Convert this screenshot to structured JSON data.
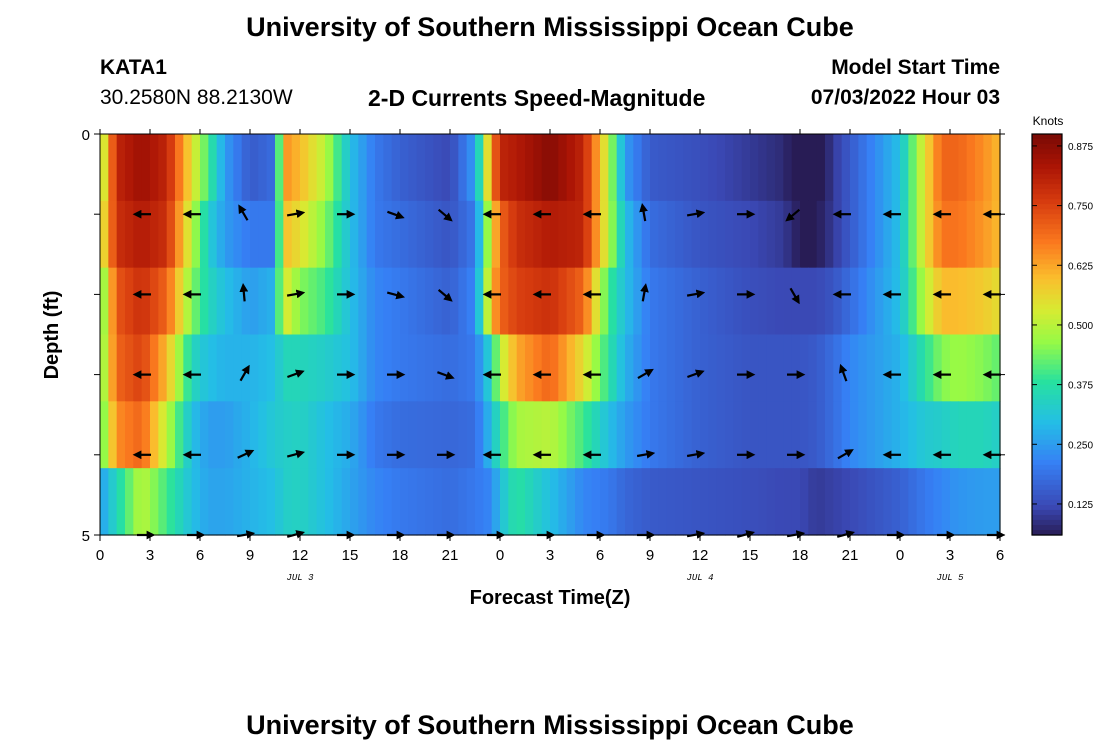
{
  "header": {
    "title": "University of Southern Mississippi Ocean Cube",
    "station": "KATA1",
    "coords": "30.2580N  88.2130W",
    "chart_title": "2-D Currents Speed-Magnitude",
    "model_label": "Model Start Time",
    "model_time": "07/03/2022 Hour 03"
  },
  "footer": {
    "title": "University of Southern Mississippi Ocean Cube"
  },
  "colors": {
    "axis": "#000000",
    "arrow": "#000000"
  },
  "chart_data": {
    "type": "heatmap",
    "title": "2-D Currents Speed-Magnitude",
    "xlabel": "Forecast Time(Z)",
    "ylabel": "Depth (ft)",
    "x_ticks": [
      "0",
      "3",
      "6",
      "9",
      "12",
      "15",
      "18",
      "21",
      "0",
      "3",
      "6",
      "9",
      "12",
      "15",
      "18",
      "21",
      "0",
      "3",
      "6"
    ],
    "date_labels": [
      {
        "label": "JUL 3",
        "x_hour": 12
      },
      {
        "label": "JUL 4",
        "x_hour": 36
      },
      {
        "label": "JUL 5",
        "x_hour": 51
      }
    ],
    "y_tick_labels": [
      {
        "depth": 0,
        "label": "0"
      },
      {
        "depth": 5,
        "label": "5"
      }
    ],
    "y_ticks_depths": [
      0,
      1,
      2,
      3,
      4,
      5
    ],
    "xlim_hours": [
      0,
      54
    ],
    "ylim_ft": [
      0,
      5
    ],
    "depth_layers": [
      0,
      1,
      2,
      3,
      4,
      5
    ],
    "colorbar": {
      "title": "Knots",
      "ticks": [
        "0.875",
        "0.750",
        "0.625",
        "0.500",
        "0.375",
        "0.250",
        "0.125"
      ],
      "tick_values": [
        0.875,
        0.75,
        0.625,
        0.5,
        0.375,
        0.25,
        0.125
      ],
      "min": 0.06,
      "max": 0.9
    },
    "speed_keyframes": {
      "hours": [
        0,
        1,
        2.5,
        4,
        5.5,
        6.5,
        7.5,
        9,
        10.5,
        11,
        12,
        13.5,
        15,
        16.5,
        18,
        21,
        22.5,
        23.5,
        24,
        25,
        27,
        29,
        30.5,
        31.5,
        33,
        36,
        39,
        41,
        42,
        43,
        44,
        45,
        48,
        49.5,
        50.5,
        51.5,
        53,
        54
      ],
      "layers": [
        [
          0.45,
          0.8,
          0.85,
          0.8,
          0.55,
          0.4,
          0.25,
          0.15,
          0.18,
          0.65,
          0.6,
          0.5,
          0.3,
          0.2,
          0.16,
          0.12,
          0.25,
          0.65,
          0.8,
          0.82,
          0.88,
          0.8,
          0.5,
          0.25,
          0.15,
          0.13,
          0.1,
          0.08,
          0.04,
          0.03,
          0.1,
          0.15,
          0.3,
          0.55,
          0.7,
          0.7,
          0.65,
          0.6
        ],
        [
          0.5,
          0.78,
          0.82,
          0.78,
          0.5,
          0.33,
          0.25,
          0.2,
          0.2,
          0.6,
          0.55,
          0.45,
          0.3,
          0.2,
          0.18,
          0.14,
          0.2,
          0.55,
          0.7,
          0.78,
          0.82,
          0.8,
          0.5,
          0.3,
          0.18,
          0.14,
          0.12,
          0.1,
          0.06,
          0.06,
          0.1,
          0.15,
          0.3,
          0.55,
          0.68,
          0.68,
          0.64,
          0.6
        ],
        [
          0.4,
          0.72,
          0.78,
          0.7,
          0.45,
          0.35,
          0.3,
          0.25,
          0.28,
          0.55,
          0.45,
          0.4,
          0.3,
          0.22,
          0.2,
          0.16,
          0.22,
          0.6,
          0.7,
          0.75,
          0.78,
          0.7,
          0.4,
          0.3,
          0.2,
          0.16,
          0.13,
          0.12,
          0.12,
          0.12,
          0.14,
          0.18,
          0.3,
          0.5,
          0.6,
          0.6,
          0.58,
          0.55
        ],
        [
          0.42,
          0.7,
          0.75,
          0.6,
          0.35,
          0.3,
          0.28,
          0.28,
          0.3,
          0.35,
          0.35,
          0.33,
          0.3,
          0.22,
          0.2,
          0.18,
          0.2,
          0.35,
          0.5,
          0.62,
          0.7,
          0.55,
          0.38,
          0.28,
          0.2,
          0.16,
          0.14,
          0.14,
          0.14,
          0.15,
          0.18,
          0.22,
          0.28,
          0.38,
          0.45,
          0.47,
          0.45,
          0.42
        ],
        [
          0.4,
          0.65,
          0.7,
          0.5,
          0.3,
          0.25,
          0.25,
          0.28,
          0.32,
          0.33,
          0.34,
          0.3,
          0.27,
          0.2,
          0.18,
          0.17,
          0.18,
          0.3,
          0.38,
          0.48,
          0.5,
          0.4,
          0.3,
          0.25,
          0.2,
          0.16,
          0.14,
          0.14,
          0.14,
          0.15,
          0.18,
          0.22,
          0.28,
          0.32,
          0.33,
          0.35,
          0.35,
          0.33
        ],
        [
          0.25,
          0.35,
          0.5,
          0.4,
          0.3,
          0.26,
          0.26,
          0.28,
          0.3,
          0.33,
          0.34,
          0.3,
          0.26,
          0.22,
          0.2,
          0.18,
          0.2,
          0.22,
          0.3,
          0.38,
          0.3,
          0.22,
          0.2,
          0.17,
          0.15,
          0.14,
          0.13,
          0.12,
          0.12,
          0.1,
          0.11,
          0.12,
          0.16,
          0.2,
          0.22,
          0.24,
          0.25,
          0.25
        ]
      ]
    },
    "arrow_hours": [
      3,
      6,
      9,
      12,
      15,
      18,
      21,
      24,
      27,
      30,
      33,
      36,
      39,
      42,
      45,
      48,
      51,
      54
    ],
    "arrow_depths": [
      1,
      2,
      3,
      4,
      5
    ],
    "arrow_directions_deg": [
      [
        180,
        180,
        120,
        10,
        0,
        340,
        320,
        180,
        180,
        180,
        100,
        10,
        0,
        220,
        180,
        180,
        180,
        180
      ],
      [
        180,
        180,
        95,
        10,
        0,
        345,
        320,
        180,
        180,
        180,
        80,
        10,
        0,
        300,
        180,
        180,
        180,
        180
      ],
      [
        180,
        180,
        60,
        20,
        0,
        0,
        340,
        180,
        180,
        180,
        30,
        20,
        0,
        0,
        110,
        180,
        180,
        180
      ],
      [
        180,
        180,
        25,
        15,
        0,
        0,
        0,
        180,
        180,
        180,
        10,
        10,
        0,
        0,
        30,
        180,
        180,
        180
      ],
      [
        0,
        0,
        10,
        15,
        0,
        0,
        0,
        0,
        0,
        0,
        0,
        10,
        15,
        10,
        15,
        0,
        0,
        0
      ]
    ]
  }
}
